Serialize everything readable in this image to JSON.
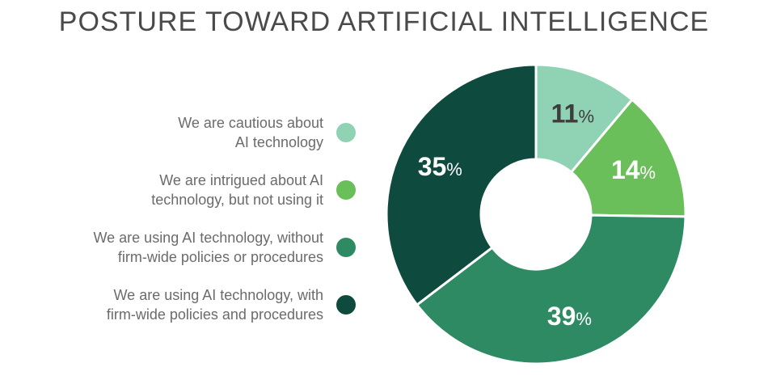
{
  "chart_data": {
    "type": "pie",
    "title": "POSTURE TOWARD ARTIFICIAL INTELLIGENCE",
    "categories": [
      "We are cautious about\nAI technology",
      "We are intrigued about AI\ntechnology, but not using it",
      "We are using AI technology, without\nfirm-wide policies or procedures",
      "We are using AI technology, with\nfirm-wide policies and procedures"
    ],
    "values": [
      11,
      14,
      39,
      35
    ],
    "labels": [
      "11",
      "14",
      "39",
      "35"
    ],
    "percent_sign": "%",
    "colors": [
      "#8fd3b4",
      "#6abf5a",
      "#2e8a63",
      "#0e4a3e"
    ],
    "label_colors": [
      "#3d3d3d",
      "#ffffff",
      "#ffffff",
      "#ffffff"
    ],
    "legend_position": "left"
  }
}
